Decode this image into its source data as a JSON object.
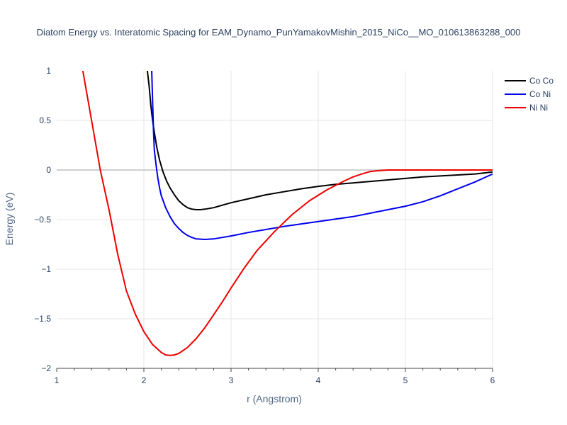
{
  "chart_data": {
    "type": "line",
    "title": "Diatom Energy vs. Interatomic Spacing for EAM_Dynamo_PunYamakovMishin_2015_NiCo__MO_010613863288_000",
    "xlabel": "r (Angstrom)",
    "ylabel": "Energy (eV)",
    "xlim": [
      1,
      6
    ],
    "ylim": [
      -2,
      1
    ],
    "xticks": [
      "1",
      "2",
      "3",
      "4",
      "5",
      "6"
    ],
    "yticks": [
      "1",
      "0.5",
      "0",
      "−0.5",
      "−1",
      "−1.5",
      "−2"
    ],
    "grid": true,
    "legend_position": "top-right",
    "series": [
      {
        "name": "Co Co",
        "color": "#000000",
        "x": [
          2.04,
          2.06,
          2.08,
          2.1,
          2.12,
          2.15,
          2.18,
          2.22,
          2.26,
          2.3,
          2.35,
          2.4,
          2.45,
          2.5,
          2.55,
          2.6,
          2.65,
          2.7,
          2.8,
          2.9,
          3.0,
          3.2,
          3.4,
          3.6,
          3.8,
          4.0,
          4.2,
          4.4,
          4.6,
          4.8,
          5.0,
          5.2,
          5.4,
          5.6,
          5.8,
          6.0
        ],
        "y": [
          1.0,
          0.85,
          0.65,
          0.5,
          0.38,
          0.22,
          0.1,
          -0.02,
          -0.11,
          -0.18,
          -0.25,
          -0.31,
          -0.35,
          -0.38,
          -0.395,
          -0.4,
          -0.4,
          -0.395,
          -0.38,
          -0.355,
          -0.33,
          -0.29,
          -0.25,
          -0.22,
          -0.19,
          -0.165,
          -0.145,
          -0.13,
          -0.115,
          -0.1,
          -0.085,
          -0.07,
          -0.06,
          -0.05,
          -0.04,
          -0.02
        ]
      },
      {
        "name": "Co Ni",
        "color": "#0000ee",
        "x": [
          2.09,
          2.1,
          2.11,
          2.12,
          2.14,
          2.16,
          2.18,
          2.2,
          2.25,
          2.3,
          2.35,
          2.4,
          2.45,
          2.5,
          2.55,
          2.6,
          2.7,
          2.8,
          2.9,
          3.0,
          3.2,
          3.4,
          3.6,
          3.8,
          4.0,
          4.2,
          4.4,
          4.6,
          4.8,
          5.0,
          5.2,
          5.4,
          5.6,
          5.8,
          6.0
        ],
        "y": [
          1.0,
          0.7,
          0.4,
          0.2,
          0.05,
          -0.08,
          -0.18,
          -0.26,
          -0.38,
          -0.47,
          -0.54,
          -0.59,
          -0.63,
          -0.66,
          -0.68,
          -0.695,
          -0.7,
          -0.695,
          -0.68,
          -0.665,
          -0.63,
          -0.6,
          -0.57,
          -0.545,
          -0.52,
          -0.495,
          -0.47,
          -0.435,
          -0.4,
          -0.365,
          -0.32,
          -0.26,
          -0.19,
          -0.12,
          -0.04
        ]
      },
      {
        "name": "Ni Ni",
        "color": "#ee0000",
        "x": [
          1.3,
          1.4,
          1.5,
          1.6,
          1.7,
          1.8,
          1.9,
          2.0,
          2.1,
          2.2,
          2.25,
          2.3,
          2.35,
          2.4,
          2.5,
          2.6,
          2.7,
          2.8,
          2.9,
          3.0,
          3.15,
          3.3,
          3.5,
          3.7,
          3.9,
          4.1,
          4.3,
          4.4,
          4.5,
          4.6,
          4.7,
          4.8,
          4.9,
          5.0,
          5.5,
          6.0
        ],
        "y": [
          1.0,
          0.5,
          0.0,
          -0.4,
          -0.85,
          -1.22,
          -1.45,
          -1.63,
          -1.76,
          -1.84,
          -1.865,
          -1.87,
          -1.865,
          -1.85,
          -1.79,
          -1.7,
          -1.59,
          -1.46,
          -1.33,
          -1.19,
          -0.99,
          -0.81,
          -0.62,
          -0.45,
          -0.31,
          -0.2,
          -0.11,
          -0.07,
          -0.04,
          -0.015,
          -0.005,
          0.0,
          0.0,
          0.0,
          0.0,
          0.0
        ]
      }
    ]
  }
}
